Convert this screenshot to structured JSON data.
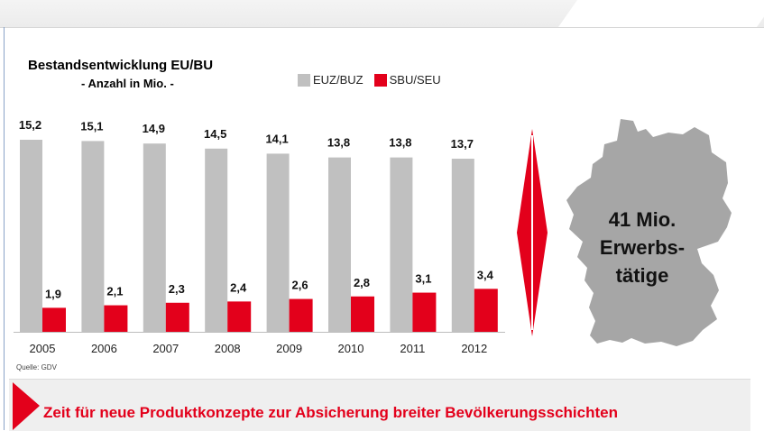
{
  "chart_data": {
    "type": "bar",
    "title": "Bestandsentwicklung EU/BU",
    "subtitle": "- Anzahl in Mio. -",
    "categories": [
      "2005",
      "2006",
      "2007",
      "2008",
      "2009",
      "2010",
      "2011",
      "2012"
    ],
    "series": [
      {
        "name": "EUZ/BUZ",
        "color": "#c0c0c0",
        "values": [
          15.2,
          15.1,
          14.9,
          14.5,
          14.1,
          13.8,
          13.8,
          13.7
        ],
        "labels": [
          "15,2",
          "15,1",
          "14,9",
          "14,5",
          "14,1",
          "13,8",
          "13,8",
          "13,7"
        ]
      },
      {
        "name": "SBU/SEU",
        "color": "#e3001b",
        "values": [
          1.9,
          2.1,
          2.3,
          2.4,
          2.6,
          2.8,
          3.1,
          3.4
        ],
        "labels": [
          "1,9",
          "2,1",
          "2,3",
          "2,4",
          "2,6",
          "2,8",
          "3,1",
          "3,4"
        ]
      }
    ],
    "ylim": [
      0,
      15.2
    ],
    "grid": false,
    "legend_position": "top"
  },
  "source": "Quelle: GDV",
  "map": {
    "line1": "41 Mio.",
    "line2": "Erwerbs-",
    "line3": "tätige",
    "fill": "#a6a6a6"
  },
  "banner": {
    "text": "Zeit für neue Produktkonzepte zur Absicherung breiter Bevölkerungsschichten",
    "color": "#e3001b"
  }
}
